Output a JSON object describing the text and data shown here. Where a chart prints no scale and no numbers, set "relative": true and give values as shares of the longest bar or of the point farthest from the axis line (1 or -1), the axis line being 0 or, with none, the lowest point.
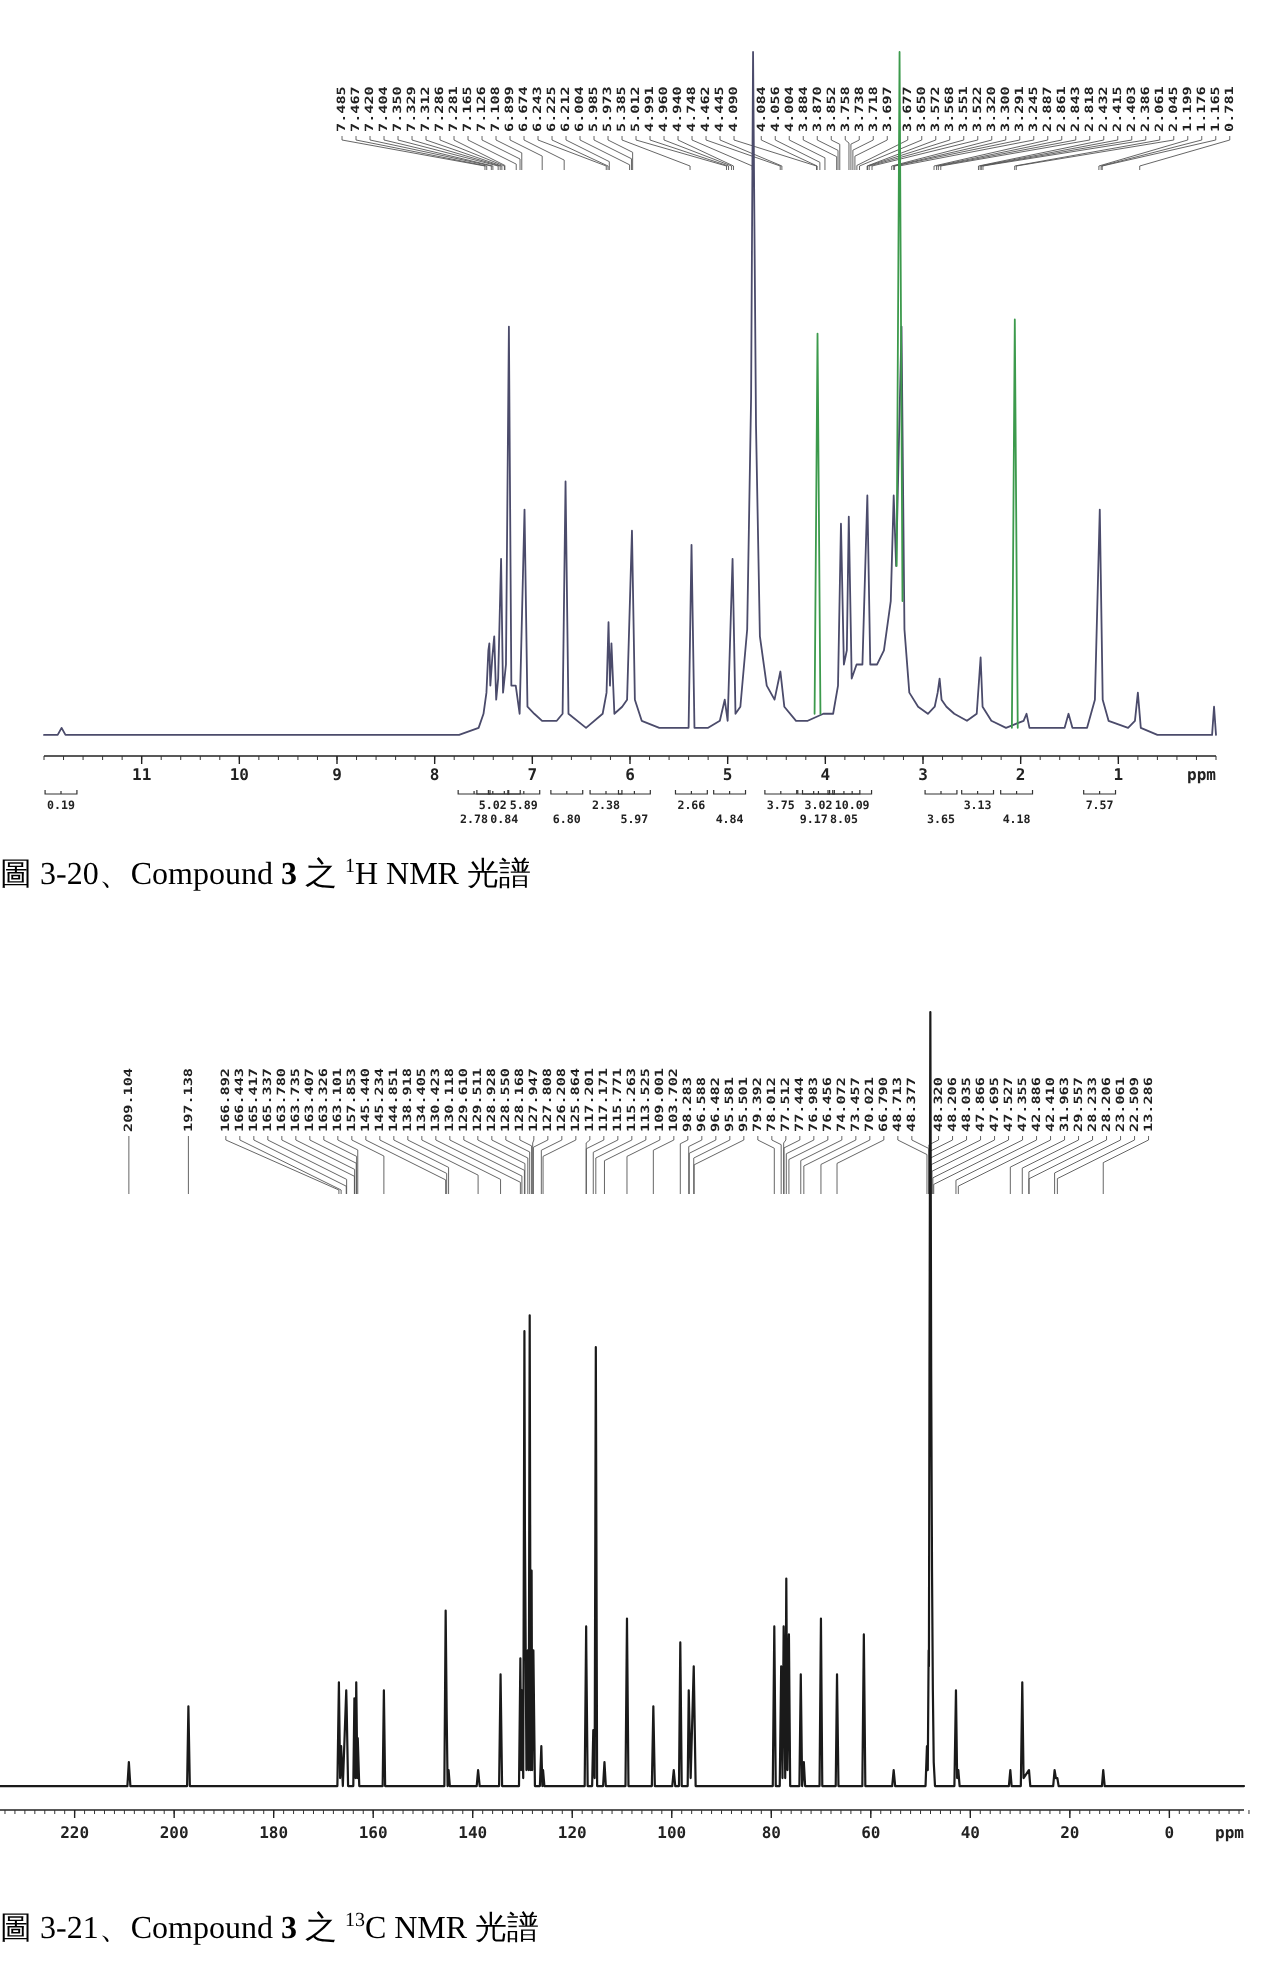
{
  "chart_data": [
    {
      "type": "line",
      "relative": true,
      "title": "圖 3-20、Compound **3** 之 $^{1}$H NMR 光譜",
      "xlabel": "ppm",
      "xlim": [
        12,
        0
      ],
      "xticks": [
        11,
        10,
        9,
        8,
        7,
        6,
        5,
        4,
        3,
        2,
        1
      ],
      "series": [
        {
          "color": "#4b4b6b",
          "x": [
            12.0,
            11.86,
            11.82,
            11.78,
            7.75,
            7.55,
            7.5,
            7.47,
            7.45,
            7.44,
            7.43,
            7.41,
            7.39,
            7.37,
            7.35,
            7.32,
            7.3,
            7.27,
            7.24,
            7.215,
            7.17,
            7.13,
            7.08,
            7.05,
            6.98,
            6.9,
            6.75,
            6.69,
            6.66,
            6.63,
            6.45,
            6.28,
            6.24,
            6.22,
            6.205,
            6.19,
            6.16,
            6.08,
            6.03,
            5.98,
            5.95,
            5.88,
            5.7,
            5.45,
            5.4,
            5.37,
            5.34,
            5.2,
            5.08,
            5.03,
            5.0,
            4.95,
            4.92,
            4.87,
            4.8,
            4.76,
            4.74,
            4.71,
            4.67,
            4.6,
            4.52,
            4.46,
            4.42,
            4.3,
            4.18,
            4.02,
            3.92,
            3.87,
            3.84,
            3.81,
            3.78,
            3.76,
            3.73,
            3.68,
            3.62,
            3.57,
            3.54,
            3.47,
            3.4,
            3.33,
            3.3,
            3.275,
            3.22,
            3.19,
            3.14,
            3.05,
            2.95,
            2.88,
            2.85,
            2.83,
            2.81,
            2.76,
            2.68,
            2.55,
            2.45,
            2.42,
            2.41,
            2.39,
            2.3,
            2.15,
            1.97,
            1.94,
            1.91,
            1.75,
            1.55,
            1.51,
            1.47,
            1.32,
            1.24,
            1.19,
            1.16,
            1.1,
            0.9,
            0.83,
            0.8,
            0.77,
            0.6,
            0.3,
            0.04,
            0.02,
            0.0
          ],
          "values": [
            0.03,
            0.03,
            0.04,
            0.03,
            0.03,
            0.04,
            0.06,
            0.09,
            0.15,
            0.16,
            0.1,
            0.14,
            0.17,
            0.08,
            0.11,
            0.28,
            0.09,
            0.13,
            0.61,
            0.1,
            0.1,
            0.06,
            0.35,
            0.07,
            0.06,
            0.05,
            0.05,
            0.06,
            0.39,
            0.06,
            0.04,
            0.06,
            0.09,
            0.19,
            0.1,
            0.16,
            0.06,
            0.07,
            0.08,
            0.32,
            0.08,
            0.05,
            0.04,
            0.04,
            0.04,
            0.3,
            0.04,
            0.04,
            0.05,
            0.08,
            0.05,
            0.28,
            0.06,
            0.07,
            0.18,
            0.51,
            1.0,
            0.47,
            0.17,
            0.1,
            0.08,
            0.12,
            0.07,
            0.05,
            0.05,
            0.06,
            0.06,
            0.1,
            0.33,
            0.13,
            0.15,
            0.34,
            0.11,
            0.13,
            0.13,
            0.37,
            0.13,
            0.13,
            0.15,
            0.22,
            0.37,
            0.27,
            0.61,
            0.18,
            0.09,
            0.07,
            0.06,
            0.07,
            0.09,
            0.11,
            0.08,
            0.07,
            0.06,
            0.05,
            0.06,
            0.12,
            0.14,
            0.07,
            0.05,
            0.04,
            0.05,
            0.06,
            0.04,
            0.04,
            0.04,
            0.06,
            0.04,
            0.04,
            0.08,
            0.35,
            0.08,
            0.05,
            0.04,
            0.05,
            0.09,
            0.04,
            0.03,
            0.03,
            0.03,
            0.07,
            0.03
          ]
        },
        {
          "color": "#3c9a4c",
          "x": [
            4.11,
            4.08,
            4.05
          ],
          "values": [
            0.06,
            0.6,
            0.06
          ]
        },
        {
          "color": "#3c9a4c",
          "x": [
            3.27,
            3.24,
            3.21
          ],
          "values": [
            0.27,
            1.0,
            0.22
          ]
        },
        {
          "color": "#3c9a4c",
          "x": [
            2.09,
            2.06,
            2.03
          ],
          "values": [
            0.04,
            0.62,
            0.04
          ]
        }
      ],
      "annotations": [
        {
          "text": "7.485",
          "x": 7.485
        },
        {
          "text": "7.467",
          "x": 7.467
        },
        {
          "text": "7.420",
          "x": 7.42
        },
        {
          "text": "7.404",
          "x": 7.404
        },
        {
          "text": "7.350",
          "x": 7.35
        },
        {
          "text": "7.329",
          "x": 7.329
        },
        {
          "text": "7.312",
          "x": 7.312
        },
        {
          "text": "7.286",
          "x": 7.286
        },
        {
          "text": "7.281",
          "x": 7.281
        },
        {
          "text": "7.165",
          "x": 7.165
        },
        {
          "text": "7.126",
          "x": 7.126
        },
        {
          "text": "7.108",
          "x": 7.108
        },
        {
          "text": "6.899",
          "x": 6.899
        },
        {
          "text": "6.674",
          "x": 6.674
        },
        {
          "text": "6.243",
          "x": 6.243
        },
        {
          "text": "6.225",
          "x": 6.225
        },
        {
          "text": "6.212",
          "x": 6.212
        },
        {
          "text": "6.004",
          "x": 6.004
        },
        {
          "text": "5.985",
          "x": 5.985
        },
        {
          "text": "5.973",
          "x": 5.973
        },
        {
          "text": "5.385",
          "x": 5.385
        },
        {
          "text": "5.012",
          "x": 5.012
        },
        {
          "text": "4.991",
          "x": 4.991
        },
        {
          "text": "4.960",
          "x": 4.96
        },
        {
          "text": "4.940",
          "x": 4.94
        },
        {
          "text": "4.748",
          "x": 4.748
        },
        {
          "text": "4.462",
          "x": 4.462
        },
        {
          "text": "4.445",
          "x": 4.445
        },
        {
          "text": "4.090",
          "x": 4.09
        },
        {
          "text": "4.084",
          "x": 4.084
        },
        {
          "text": "4.056",
          "x": 4.056
        },
        {
          "text": "4.004",
          "x": 4.004
        },
        {
          "text": "3.884",
          "x": 3.884
        },
        {
          "text": "3.870",
          "x": 3.87
        },
        {
          "text": "3.852",
          "x": 3.852
        },
        {
          "text": "3.758",
          "x": 3.758
        },
        {
          "text": "3.738",
          "x": 3.738
        },
        {
          "text": "3.718",
          "x": 3.718
        },
        {
          "text": "3.697",
          "x": 3.697
        },
        {
          "text": "3.677",
          "x": 3.677
        },
        {
          "text": "3.650",
          "x": 3.65
        },
        {
          "text": "3.572",
          "x": 3.572
        },
        {
          "text": "3.568",
          "x": 3.568
        },
        {
          "text": "3.551",
          "x": 3.551
        },
        {
          "text": "3.522",
          "x": 3.522
        },
        {
          "text": "3.320",
          "x": 3.32
        },
        {
          "text": "3.300",
          "x": 3.3
        },
        {
          "text": "3.291",
          "x": 3.291
        },
        {
          "text": "3.245",
          "x": 3.245
        },
        {
          "text": "2.887",
          "x": 2.887
        },
        {
          "text": "2.861",
          "x": 2.861
        },
        {
          "text": "2.843",
          "x": 2.843
        },
        {
          "text": "2.818",
          "x": 2.818
        },
        {
          "text": "2.432",
          "x": 2.432
        },
        {
          "text": "2.415",
          "x": 2.415
        },
        {
          "text": "2.403",
          "x": 2.403
        },
        {
          "text": "2.386",
          "x": 2.386
        },
        {
          "text": "2.061",
          "x": 2.061
        },
        {
          "text": "2.045",
          "x": 2.045
        },
        {
          "text": "1.199",
          "x": 1.199
        },
        {
          "text": "1.176",
          "x": 1.176
        },
        {
          "text": "1.165",
          "x": 1.165
        },
        {
          "text": "0.781",
          "x": 0.781
        },
        "0.19",
        "2.78",
        "5.02",
        "0.84",
        "5.89",
        "6.80",
        "2.38",
        "5.97",
        "2.66",
        "4.84",
        "3.75",
        "9.17",
        "3.02",
        "8.05",
        "10.09",
        "3.65",
        "3.13",
        "4.18",
        "7.57"
      ]
    },
    {
      "type": "line",
      "relative": true,
      "title": "圖 3-21、Compound **3** 之 $^{13}$C NMR 光譜",
      "xlabel": "ppm",
      "xlim": [
        235,
        -15
      ],
      "xticks": [
        220,
        200,
        180,
        160,
        140,
        120,
        100,
        80,
        60,
        40,
        20,
        0
      ],
      "series": [
        {
          "color": "#1a1a1a",
          "x": [
            235,
            209.4,
            209.104,
            208.8,
            197.4,
            197.138,
            196.85,
            167.2,
            166.892,
            166.65,
            166.443,
            166.1,
            165.417,
            165.337,
            165.05,
            164.0,
            163.78,
            163.735,
            163.55,
            163.407,
            163.326,
            163.2,
            163.101,
            162.8,
            158.1,
            157.853,
            157.6,
            145.7,
            145.44,
            145.234,
            145.05,
            144.851,
            144.6,
            139.2,
            138.918,
            138.6,
            134.7,
            134.405,
            134.1,
            130.7,
            130.423,
            130.27,
            130.118,
            129.85,
            129.61,
            129.511,
            129.2,
            128.928,
            128.75,
            128.55,
            128.35,
            128.168,
            128.05,
            127.947,
            127.808,
            127.5,
            126.5,
            126.208,
            126.0,
            125.864,
            125.6,
            117.5,
            117.201,
            117.171,
            116.9,
            116.0,
            115.771,
            115.5,
            115.263,
            115.0,
            113.8,
            113.525,
            113.25,
            109.3,
            109.001,
            108.7,
            104.0,
            103.702,
            103.4,
            99.9,
            99.6,
            99.3,
            98.55,
            98.283,
            98.0,
            96.8,
            96.588,
            96.482,
            96.2,
            95.581,
            95.501,
            95.2,
            79.7,
            79.392,
            79.1,
            78.3,
            78.012,
            77.75,
            77.512,
            77.444,
            77.2,
            76.983,
            76.75,
            76.456,
            76.2,
            74.35,
            74.072,
            73.8,
            73.457,
            73.2,
            70.3,
            70.021,
            69.75,
            67.05,
            66.79,
            66.5,
            61.7,
            61.4,
            61.1,
            55.7,
            55.4,
            55.1,
            49.0,
            48.713,
            48.55,
            48.377,
            48.32,
            48.206,
            48.035,
            47.866,
            47.695,
            47.527,
            47.355,
            47.1,
            43.2,
            42.886,
            42.65,
            42.41,
            42.15,
            32.25,
            31.963,
            31.7,
            29.85,
            29.557,
            29.3,
            28.233,
            28.206,
            27.95,
            23.35,
            23.061,
            22.8,
            22.509,
            22.25,
            13.55,
            13.286,
            13.0,
            -15
          ],
          "values": [
            0.03,
            0.03,
            0.06,
            0.03,
            0.03,
            0.13,
            0.03,
            0.03,
            0.16,
            0.04,
            0.08,
            0.03,
            0.15,
            0.13,
            0.03,
            0.03,
            0.14,
            0.12,
            0.04,
            0.16,
            0.12,
            0.04,
            0.09,
            0.03,
            0.03,
            0.15,
            0.03,
            0.03,
            0.25,
            0.12,
            0.03,
            0.05,
            0.03,
            0.03,
            0.05,
            0.03,
            0.03,
            0.17,
            0.03,
            0.03,
            0.19,
            0.05,
            0.15,
            0.04,
            0.6,
            0.35,
            0.05,
            0.2,
            0.05,
            0.62,
            0.05,
            0.3,
            0.05,
            0.15,
            0.2,
            0.03,
            0.03,
            0.08,
            0.03,
            0.05,
            0.03,
            0.03,
            0.23,
            0.2,
            0.03,
            0.03,
            0.1,
            0.04,
            0.58,
            0.03,
            0.03,
            0.06,
            0.03,
            0.03,
            0.24,
            0.03,
            0.03,
            0.13,
            0.03,
            0.03,
            0.05,
            0.03,
            0.03,
            0.21,
            0.03,
            0.03,
            0.15,
            0.12,
            0.04,
            0.18,
            0.15,
            0.03,
            0.03,
            0.23,
            0.03,
            0.03,
            0.18,
            0.04,
            0.23,
            0.2,
            0.04,
            0.29,
            0.05,
            0.22,
            0.03,
            0.03,
            0.17,
            0.03,
            0.06,
            0.03,
            0.03,
            0.24,
            0.03,
            0.03,
            0.17,
            0.03,
            0.03,
            0.22,
            0.03,
            0.03,
            0.05,
            0.03,
            0.03,
            0.08,
            0.05,
            0.2,
            0.18,
            0.55,
            1.0,
            0.55,
            0.3,
            0.15,
            0.06,
            0.03,
            0.03,
            0.15,
            0.04,
            0.05,
            0.03,
            0.03,
            0.05,
            0.03,
            0.03,
            0.16,
            0.04,
            0.05,
            0.05,
            0.03,
            0.03,
            0.05,
            0.04,
            0.04,
            0.03,
            0.03,
            0.05,
            0.03,
            0.03
          ]
        }
      ],
      "annotations": [
        {
          "text": "209.104",
          "x": 209.104
        },
        {
          "text": "197.138",
          "x": 197.138
        },
        {
          "text": "166.892",
          "x": 166.892
        },
        {
          "text": "166.443",
          "x": 166.443
        },
        {
          "text": "165.417",
          "x": 165.417
        },
        {
          "text": "165.337",
          "x": 165.337
        },
        {
          "text": "163.780",
          "x": 163.78
        },
        {
          "text": "163.735",
          "x": 163.735
        },
        {
          "text": "163.407",
          "x": 163.407
        },
        {
          "text": "163.326",
          "x": 163.326
        },
        {
          "text": "163.101",
          "x": 163.101
        },
        {
          "text": "157.853",
          "x": 157.853
        },
        {
          "text": "145.440",
          "x": 145.44
        },
        {
          "text": "145.234",
          "x": 145.234
        },
        {
          "text": "144.851",
          "x": 144.851
        },
        {
          "text": "138.918",
          "x": 138.918
        },
        {
          "text": "134.405",
          "x": 134.405
        },
        {
          "text": "130.423",
          "x": 130.423
        },
        {
          "text": "130.118",
          "x": 130.118
        },
        {
          "text": "129.610",
          "x": 129.61
        },
        {
          "text": "129.511",
          "x": 129.511
        },
        {
          "text": "128.928",
          "x": 128.928
        },
        {
          "text": "128.550",
          "x": 128.55
        },
        {
          "text": "128.168",
          "x": 128.168
        },
        {
          "text": "127.947",
          "x": 127.947
        },
        {
          "text": "127.808",
          "x": 127.808
        },
        {
          "text": "126.208",
          "x": 126.208
        },
        {
          "text": "125.864",
          "x": 125.864
        },
        {
          "text": "117.201",
          "x": 117.201
        },
        {
          "text": "117.171",
          "x": 117.171
        },
        {
          "text": "115.771",
          "x": 115.771
        },
        {
          "text": "115.263",
          "x": 115.263
        },
        {
          "text": "113.525",
          "x": 113.525
        },
        {
          "text": "109.001",
          "x": 109.001
        },
        {
          "text": "103.702",
          "x": 103.702
        },
        {
          "text": "98.283",
          "x": 98.283
        },
        {
          "text": "96.588",
          "x": 96.588
        },
        {
          "text": "96.482",
          "x": 96.482
        },
        {
          "text": "95.581",
          "x": 95.581
        },
        {
          "text": "95.501",
          "x": 95.501
        },
        {
          "text": "79.392",
          "x": 79.392
        },
        {
          "text": "78.012",
          "x": 78.012
        },
        {
          "text": "77.512",
          "x": 77.512
        },
        {
          "text": "77.444",
          "x": 77.444
        },
        {
          "text": "76.983",
          "x": 76.983
        },
        {
          "text": "76.456",
          "x": 76.456
        },
        {
          "text": "74.072",
          "x": 74.072
        },
        {
          "text": "73.457",
          "x": 73.457
        },
        {
          "text": "70.021",
          "x": 70.021
        },
        {
          "text": "66.790",
          "x": 66.79
        },
        {
          "text": "48.713",
          "x": 48.713
        },
        {
          "text": "48.377",
          "x": 48.377
        },
        {
          "text": "48.320",
          "x": 48.32
        },
        {
          "text": "48.206",
          "x": 48.206
        },
        {
          "text": "48.035",
          "x": 48.035
        },
        {
          "text": "47.866",
          "x": 47.866
        },
        {
          "text": "47.695",
          "x": 47.695
        },
        {
          "text": "47.527",
          "x": 47.527
        },
        {
          "text": "47.355",
          "x": 47.355
        },
        {
          "text": "42.886",
          "x": 42.886
        },
        {
          "text": "42.410",
          "x": 42.41
        },
        {
          "text": "31.963",
          "x": 31.963
        },
        {
          "text": "29.557",
          "x": 29.557
        },
        {
          "text": "28.233",
          "x": 28.233
        },
        {
          "text": "28.206",
          "x": 28.206
        },
        {
          "text": "23.061",
          "x": 23.061
        },
        {
          "text": "22.509",
          "x": 22.509
        },
        {
          "text": "13.286",
          "x": 13.286
        }
      ]
    }
  ]
}
